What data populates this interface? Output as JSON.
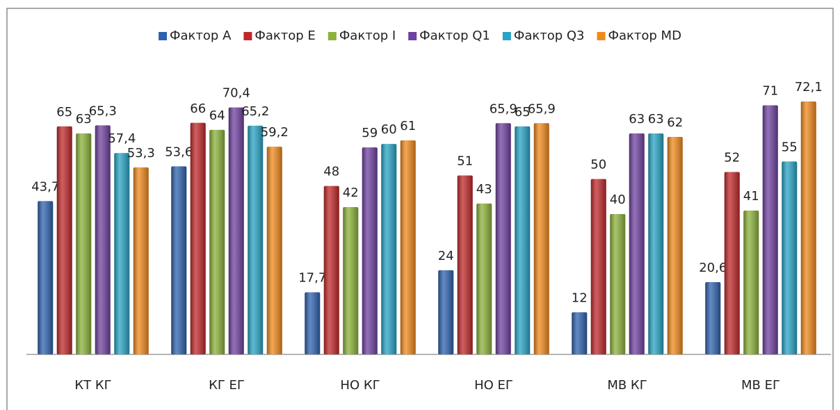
{
  "chart_data": {
    "type": "bar",
    "categories": [
      "КТ КГ",
      "КГ ЕГ",
      "НО КГ",
      "НО ЕГ",
      "МВ КГ",
      "МВ ЕГ"
    ],
    "series": [
      {
        "name": "Фактор A",
        "color": "#2e62ae",
        "values": [
          43.7,
          53.6,
          17.7,
          24,
          12,
          20.6
        ],
        "value_labels": [
          "43,7",
          "53,6",
          "17,7",
          "24",
          "12",
          "20,6"
        ]
      },
      {
        "name": "Фактор E",
        "color": "#c0282a",
        "values": [
          65,
          66,
          48,
          51,
          50,
          52
        ],
        "value_labels": [
          "65",
          "66",
          "48",
          "51",
          "50",
          "52"
        ]
      },
      {
        "name": "Фактор I",
        "color": "#8cb23a",
        "values": [
          63,
          64,
          42,
          43,
          40,
          41
        ],
        "value_labels": [
          "63",
          "64",
          "42",
          "43",
          "40",
          "41"
        ]
      },
      {
        "name": "Фактор Q1",
        "color": "#7041a0",
        "values": [
          65.3,
          70.4,
          59,
          65.9,
          63,
          71
        ],
        "value_labels": [
          "65,3",
          "70,4",
          "59",
          "65,9",
          "63",
          "71"
        ]
      },
      {
        "name": "Фактор Q3",
        "color": "#28a4c4",
        "values": [
          57.4,
          65.2,
          60,
          65,
          63,
          55
        ],
        "value_labels": [
          "57,4",
          "65,2",
          "60",
          "65",
          "63",
          "55"
        ]
      },
      {
        "name": "Фактор MD",
        "color": "#f08a1c",
        "values": [
          53.3,
          59.2,
          61,
          65.9,
          62,
          72.1
        ],
        "value_labels": [
          "53,3",
          "59,2",
          "61",
          "65,9",
          "62",
          "72,1"
        ]
      }
    ],
    "legend": "top"
  }
}
